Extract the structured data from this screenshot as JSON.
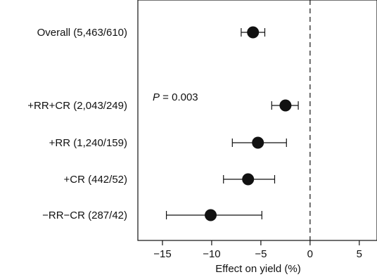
{
  "chart_data": {
    "type": "scatter",
    "subtype": "forest-plot",
    "xlabel": "Effect on yield (%)",
    "xlim": [
      -17.5,
      6.8
    ],
    "xticks": [
      -15,
      -10,
      -5,
      0,
      5
    ],
    "xtick_labels": [
      "−15",
      "−10",
      "−5",
      "0",
      "5"
    ],
    "reference_line": 0,
    "annotation": {
      "italic": "P",
      "text": " = 0.003"
    },
    "rows": [
      {
        "label": "Overall (5,463/610)",
        "estimate": -5.8,
        "ci_low": -7.0,
        "ci_high": -4.6
      },
      {
        "label": "+RR+CR (2,043/249)",
        "estimate": -2.5,
        "ci_low": -3.9,
        "ci_high": -1.2
      },
      {
        "label": "+RR (1,240/159)",
        "estimate": -5.3,
        "ci_low": -7.9,
        "ci_high": -2.4
      },
      {
        "label": "+CR (442/52)",
        "estimate": -6.3,
        "ci_low": -8.8,
        "ci_high": -3.6
      },
      {
        "label": "−RR−CR (287/42)",
        "estimate": -10.1,
        "ci_low": -14.6,
        "ci_high": -4.9
      }
    ]
  }
}
